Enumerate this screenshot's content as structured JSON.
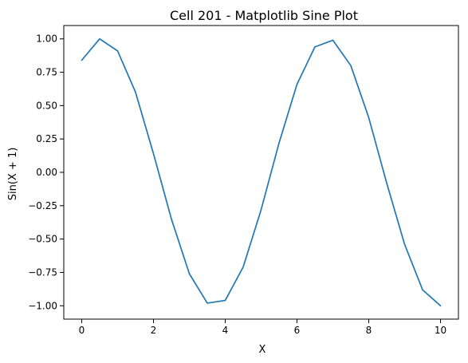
{
  "chart_data": {
    "type": "line",
    "title": "Cell 201 - Matplotlib Sine Plot",
    "xlabel": "X",
    "ylabel": "Sin(X + 1)",
    "xlim": [
      -0.5,
      10.5
    ],
    "ylim": [
      -1.1,
      1.1
    ],
    "x_ticks": [
      "0",
      "2",
      "4",
      "6",
      "8",
      "10"
    ],
    "y_ticks": [
      "−1.00",
      "−0.75",
      "−0.50",
      "−0.25",
      "0.00",
      "0.25",
      "0.50",
      "0.75",
      "1.00"
    ],
    "grid": false,
    "legend": "none",
    "series": [
      {
        "color": "#1f77b4",
        "x": [
          0,
          0.5,
          1,
          1.5,
          2,
          2.5,
          3,
          3.5,
          4,
          4.5,
          5,
          5.5,
          6,
          6.5,
          7,
          7.5,
          8,
          8.5,
          9,
          9.5,
          10
        ],
        "y": [
          0.84,
          1.0,
          0.91,
          0.6,
          0.14,
          -0.35,
          -0.76,
          -0.98,
          -0.96,
          -0.71,
          -0.28,
          0.22,
          0.66,
          0.94,
          0.99,
          0.8,
          0.41,
          -0.08,
          -0.54,
          -0.88,
          -1.0
        ]
      }
    ]
  }
}
